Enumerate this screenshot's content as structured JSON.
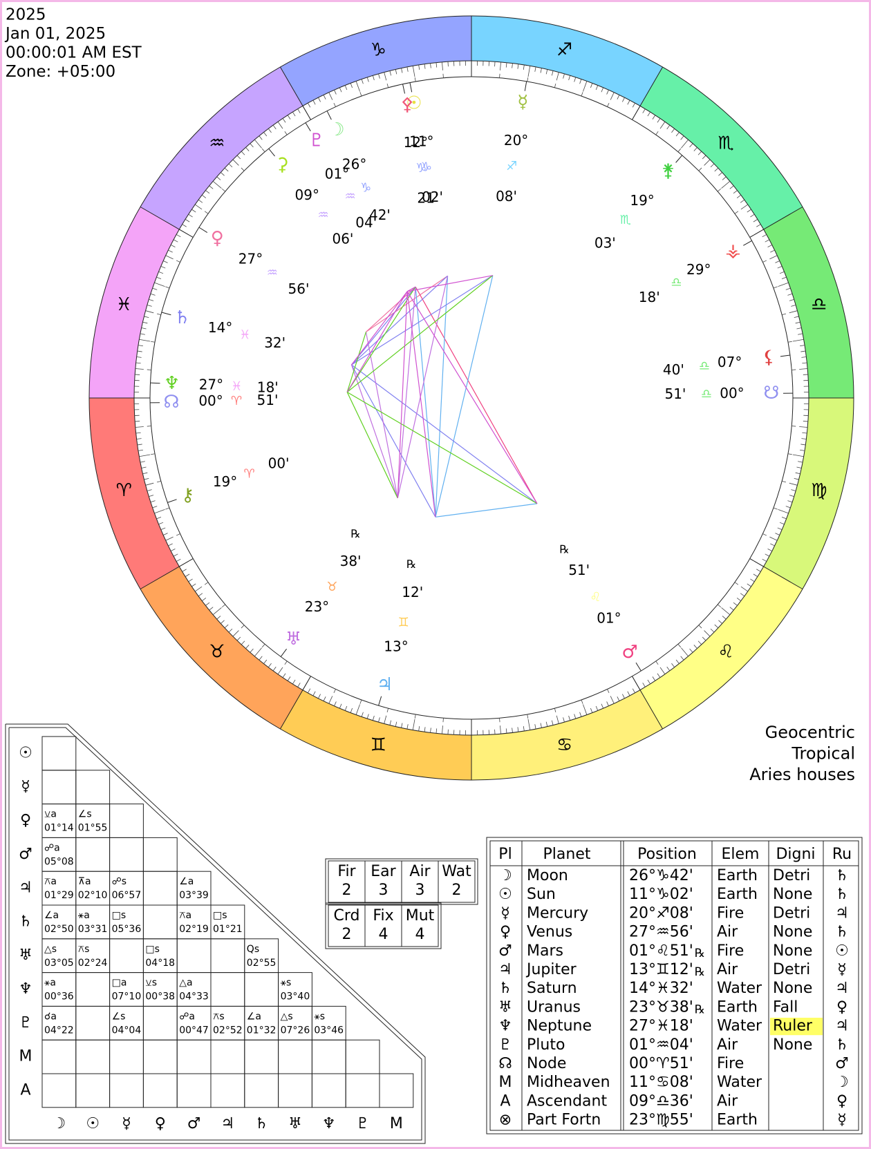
{
  "header": {
    "lines": [
      "2025",
      "Jan 01, 2025",
      "00:00:01 AM EST",
      "Zone: +05:00"
    ]
  },
  "wheel": {
    "signs": [
      "♈",
      "♉",
      "♊",
      "♋",
      "♌",
      "♍",
      "♎",
      "♏",
      "♐",
      "♑",
      "♒",
      "♓"
    ],
    "colors": [
      "#ff7a78",
      "#ffa45a",
      "#ffcc55",
      "#fff07a",
      "#ffff86",
      "#d8f87a",
      "#76ea76",
      "#66f0a8",
      "#78d4ff",
      "#94a4ff",
      "#c6a4ff",
      "#f4a4f8"
    ],
    "bodies": [
      {
        "glyph": "☽",
        "color": "#88e888",
        "deg": "26°",
        "sign": "♑",
        "min": "42'"
      },
      {
        "glyph": "♇",
        "color": "#d050d0",
        "deg": "01°",
        "sign": "♒",
        "min": "04'"
      },
      {
        "glyph": "☉",
        "color": "#e8e040",
        "deg": "11°",
        "sign": "♑",
        "min": "02'"
      },
      {
        "glyph": "⚴",
        "color": "#f05878",
        "deg": "12°",
        "sign": "♑",
        "min": "21'"
      },
      {
        "glyph": "☿",
        "color": "#a0c040",
        "deg": "20°",
        "sign": "♐",
        "min": "08'"
      },
      {
        "glyph": "⚳",
        "color": "#a8e020",
        "deg": "09°",
        "sign": "♒",
        "min": "06'"
      },
      {
        "glyph": "♀",
        "color": "#f070a0",
        "deg": "27°",
        "sign": "♒",
        "min": "56'"
      },
      {
        "glyph": "⚵",
        "color": "#40d040",
        "deg": "19°",
        "sign": "♏",
        "min": "03'"
      },
      {
        "glyph": "⚶",
        "color": "#f05050",
        "deg": "29°",
        "sign": "♎",
        "min": "18'"
      },
      {
        "glyph": "⚸",
        "color": "#e04040",
        "deg": "07°",
        "sign": "♎",
        "min": "40'"
      },
      {
        "glyph": "☋",
        "color": "#9090f0",
        "deg": "00°",
        "sign": "♎",
        "min": "51'"
      },
      {
        "glyph": "♄",
        "color": "#8080f0",
        "deg": "14°",
        "sign": "♓",
        "min": "32'"
      },
      {
        "glyph": "♆",
        "color": "#60d020",
        "deg": "27°",
        "sign": "♓",
        "min": "18'"
      },
      {
        "glyph": "☊",
        "color": "#9090f0",
        "deg": "00°",
        "sign": "♈",
        "min": "51'"
      },
      {
        "glyph": "⚷",
        "color": "#80a020",
        "deg": "19°",
        "sign": "♈",
        "min": "00'"
      },
      {
        "glyph": "♅",
        "color": "#c070e0",
        "deg": "23°",
        "sign": "♉",
        "min": "38'",
        "rx": "℞"
      },
      {
        "glyph": "♃",
        "color": "#60b0f0",
        "deg": "13°",
        "sign": "♊",
        "min": "12'",
        "rx": "℞"
      },
      {
        "glyph": "♂",
        "color": "#f04080",
        "deg": "01°",
        "sign": "♌",
        "min": "51'",
        "rx": "℞"
      }
    ]
  },
  "labels": [
    "Geocentric",
    "Tropical",
    "Aries houses"
  ],
  "aspect_grid": {
    "columns": [
      "☽",
      "☉",
      "☿",
      "♀",
      "♂",
      "♃",
      "♄",
      "♅",
      "♆",
      "♇",
      "M"
    ],
    "rows": [
      {
        "label": "☉",
        "cells": [
          null
        ]
      },
      {
        "label": "☿",
        "cells": [
          null,
          null
        ]
      },
      {
        "label": "♀",
        "cells": [
          {
            "aspect": "⚺a",
            "orb": "01°14"
          },
          {
            "aspect": "∠s",
            "orb": "01°55"
          },
          null
        ]
      },
      {
        "label": "♂",
        "cells": [
          {
            "aspect": "☍a",
            "orb": "05°08"
          },
          null,
          null,
          null
        ]
      },
      {
        "label": "♃",
        "cells": [
          {
            "aspect": "⚻a",
            "orb": "01°29"
          },
          {
            "aspect": "⊼a",
            "orb": "02°10"
          },
          {
            "aspect": "☍s",
            "orb": "06°57"
          },
          null,
          {
            "aspect": "∠a",
            "orb": "03°39"
          }
        ]
      },
      {
        "label": "♄",
        "cells": [
          {
            "aspect": "∠a",
            "orb": "02°50"
          },
          {
            "aspect": "⚹a",
            "orb": "03°31"
          },
          {
            "aspect": "□s",
            "orb": "05°36"
          },
          null,
          {
            "aspect": "⚻a",
            "orb": "02°19"
          },
          {
            "aspect": "□s",
            "orb": "01°21"
          }
        ]
      },
      {
        "label": "♅",
        "cells": [
          {
            "aspect": "△s",
            "orb": "03°05"
          },
          {
            "aspect": "⚻s",
            "orb": "02°24"
          },
          null,
          {
            "aspect": "□s",
            "orb": "04°18"
          },
          null,
          null,
          {
            "aspect": "Qs",
            "orb": "02°55"
          }
        ]
      },
      {
        "label": "♆",
        "cells": [
          {
            "aspect": "⚹a",
            "orb": "00°36"
          },
          null,
          {
            "aspect": "□a",
            "orb": "07°10"
          },
          {
            "aspect": "⚺s",
            "orb": "00°38"
          },
          {
            "aspect": "△a",
            "orb": "04°33"
          },
          null,
          null,
          {
            "aspect": "⚹s",
            "orb": "03°40"
          }
        ]
      },
      {
        "label": "♇",
        "cells": [
          {
            "aspect": "☌a",
            "orb": "04°22"
          },
          null,
          {
            "aspect": "∠s",
            "orb": "04°04"
          },
          null,
          {
            "aspect": "☍a",
            "orb": "00°47"
          },
          {
            "aspect": "⚻s",
            "orb": "02°52"
          },
          {
            "aspect": "∠a",
            "orb": "01°32"
          },
          {
            "aspect": "△s",
            "orb": "07°26"
          },
          {
            "aspect": "⚹s",
            "orb": "03°46"
          }
        ]
      },
      {
        "label": "M",
        "cells": [
          null,
          null,
          null,
          null,
          null,
          null,
          null,
          null,
          null,
          null
        ]
      },
      {
        "label": "A",
        "cells": [
          null,
          null,
          null,
          null,
          null,
          null,
          null,
          null,
          null,
          null,
          null
        ]
      }
    ]
  },
  "elements": {
    "rows": [
      [
        {
          "label": "Fir",
          "count": 2
        },
        {
          "label": "Ear",
          "count": 3
        },
        {
          "label": "Air",
          "count": 3
        },
        {
          "label": "Wat",
          "count": 2
        }
      ],
      [
        {
          "label": "Crd",
          "count": 2
        },
        {
          "label": "Fix",
          "count": 4
        },
        {
          "label": "Mut",
          "count": 4
        }
      ]
    ]
  },
  "planet_table": {
    "headers": [
      "Pl",
      "Planet",
      "Position",
      "Elem",
      "Digni",
      "Ru"
    ],
    "highlight": {
      "row": 8,
      "color": "#ffff66"
    },
    "rows": [
      {
        "glyph": "☽",
        "planet": "Moon",
        "position": "26°♑42'",
        "element": "Earth",
        "dignity": "Detri",
        "ruler": "♄"
      },
      {
        "glyph": "☉",
        "planet": "Sun",
        "position": "11°♑02'",
        "element": "Earth",
        "dignity": "None",
        "ruler": "♄"
      },
      {
        "glyph": "☿",
        "planet": "Mercury",
        "position": "20°♐08'",
        "element": "Fire",
        "dignity": "Detri",
        "ruler": "♃"
      },
      {
        "glyph": "♀",
        "planet": "Venus",
        "position": "27°♒56'",
        "element": "Air",
        "dignity": "None",
        "ruler": "♄"
      },
      {
        "glyph": "♂",
        "planet": "Mars",
        "position": "01°♌51'",
        "rx": "℞",
        "element": "Fire",
        "dignity": "None",
        "ruler": "☉"
      },
      {
        "glyph": "♃",
        "planet": "Jupiter",
        "position": "13°♊12'",
        "rx": "℞",
        "element": "Air",
        "dignity": "Detri",
        "ruler": "☿"
      },
      {
        "glyph": "♄",
        "planet": "Saturn",
        "position": "14°♓32'",
        "element": "Water",
        "dignity": "None",
        "ruler": "♃"
      },
      {
        "glyph": "♅",
        "planet": "Uranus",
        "position": "23°♉38'",
        "rx": "℞",
        "element": "Earth",
        "dignity": "Fall",
        "ruler": "♀"
      },
      {
        "glyph": "♆",
        "planet": "Neptune",
        "position": "27°♓18'",
        "element": "Water",
        "dignity": "Ruler",
        "ruler": "♃"
      },
      {
        "glyph": "♇",
        "planet": "Pluto",
        "position": "01°♒04'",
        "element": "Air",
        "dignity": "None",
        "ruler": "♄"
      },
      {
        "glyph": "☊",
        "planet": "Node",
        "position": "00°♈51'",
        "element": "Fire",
        "ruler": "♂"
      },
      {
        "glyph": "M",
        "planet": "Midheaven",
        "position": "11°♋08'",
        "element": "Water",
        "ruler": "☽"
      },
      {
        "glyph": "A",
        "planet": "Ascendant",
        "position": "09°♎36'",
        "element": "Air",
        "ruler": "♀"
      },
      {
        "glyph": "⊗",
        "planet": "Part Fortn",
        "position": "23°♍55'",
        "element": "Earth",
        "ruler": "☿"
      }
    ]
  }
}
